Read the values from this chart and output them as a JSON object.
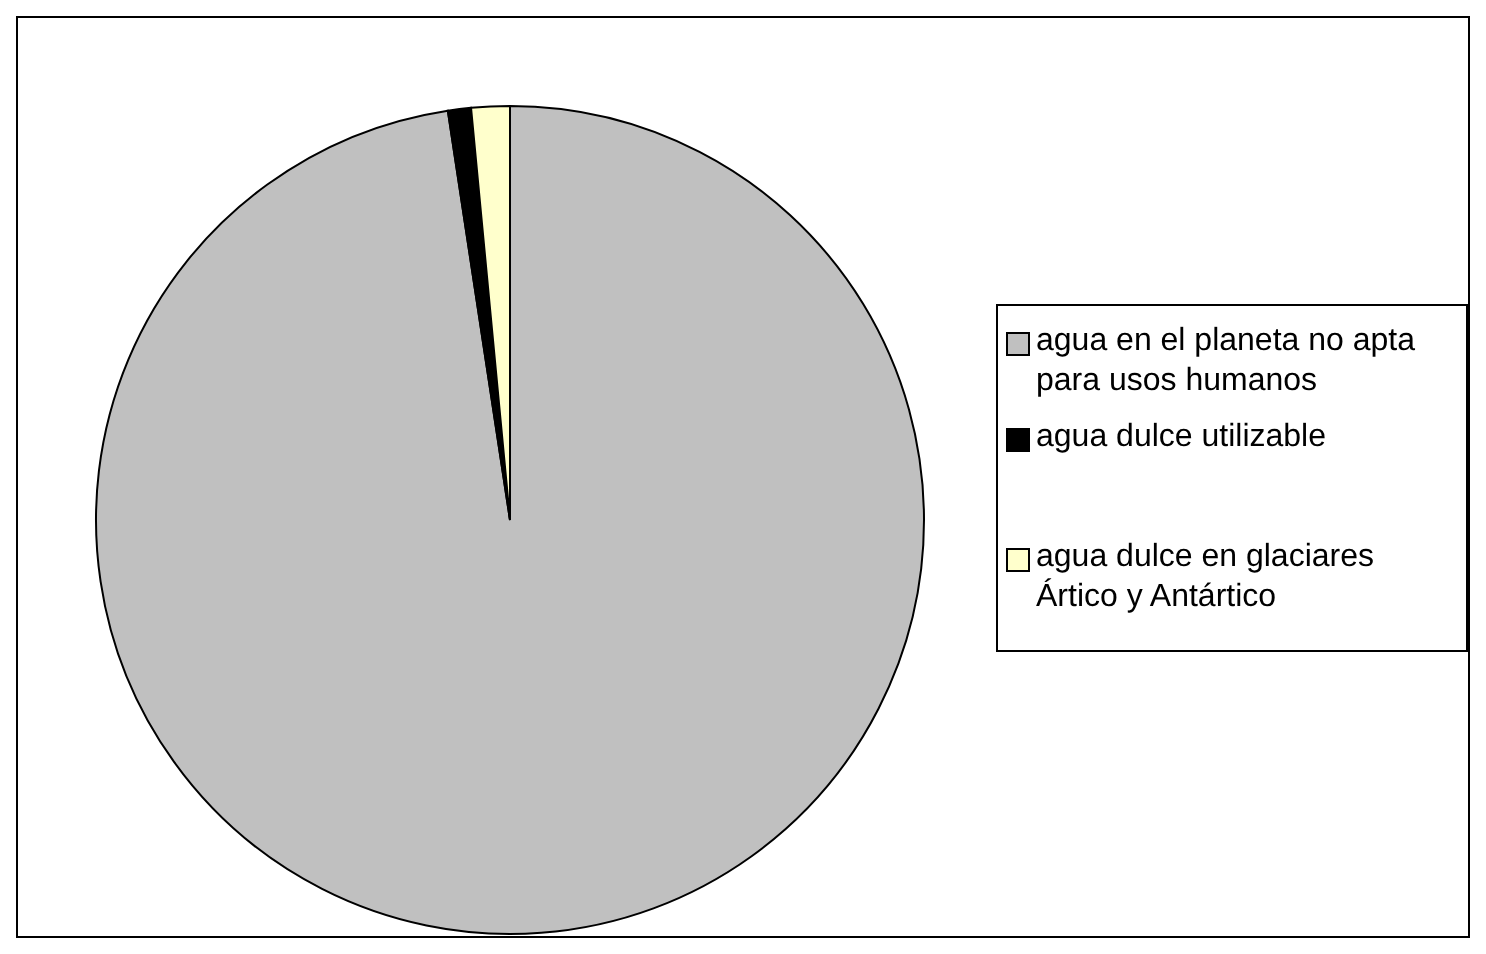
{
  "chart_data": {
    "type": "pie",
    "categories": [
      "agua en el planeta no apta para usos humanos",
      "agua dulce utilizable",
      "agua dulce en glaciares Ártico y Antártico"
    ],
    "values": [
      97.6,
      0.9,
      1.5
    ],
    "colors": [
      "#c0c0c0",
      "#000000",
      "#ffffcc"
    ],
    "legend": "right"
  }
}
